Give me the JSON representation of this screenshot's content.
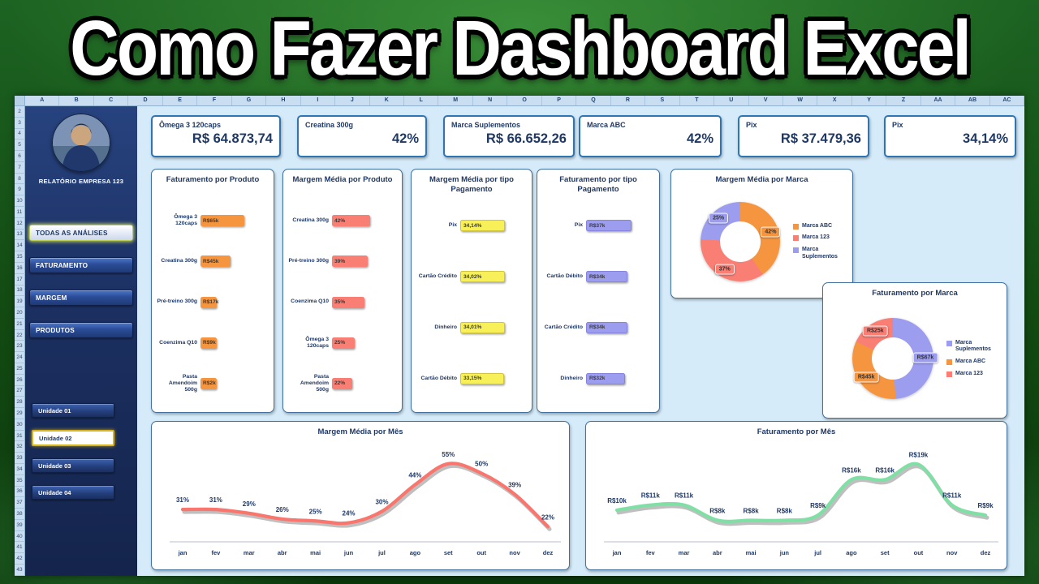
{
  "banner": {
    "title": "Como Fazer Dashboard Excel"
  },
  "spreadsheet": {
    "columns": [
      "A",
      "B",
      "C",
      "D",
      "E",
      "F",
      "G",
      "H",
      "I",
      "J",
      "K",
      "L",
      "M",
      "N",
      "O",
      "P",
      "Q",
      "R",
      "S",
      "T",
      "U",
      "V",
      "W",
      "X",
      "Y",
      "Z",
      "AA",
      "AB",
      "AC"
    ],
    "rows": [
      "2",
      "3",
      "4",
      "5",
      "6",
      "7",
      "8",
      "9",
      "10",
      "11",
      "12",
      "13",
      "14",
      "15",
      "16",
      "17",
      "18",
      "19",
      "20",
      "21",
      "22",
      "23",
      "24",
      "25",
      "26",
      "27",
      "28",
      "29",
      "30",
      "31",
      "32",
      "33",
      "34",
      "35",
      "36",
      "37",
      "38",
      "39",
      "40",
      "41",
      "42",
      "43"
    ]
  },
  "sidebar": {
    "company": "RELATÓRIO EMPRESA 123",
    "nav_items": [
      {
        "label": "TODAS AS ANÁLISES",
        "active": true
      },
      {
        "label": "FATURAMENTO",
        "active": false
      },
      {
        "label": "MARGEM",
        "active": false
      },
      {
        "label": "PRODUTOS",
        "active": false
      }
    ],
    "unit_items": [
      {
        "label": "Unidade 01",
        "active": false
      },
      {
        "label": "Unidade 02",
        "active": true
      },
      {
        "label": "Unidade 03",
        "active": false
      },
      {
        "label": "Unidade 04",
        "active": false
      }
    ]
  },
  "kpis": [
    {
      "label": "Ômega 3 120caps",
      "value": "R$ 64.873,74"
    },
    {
      "label": "Creatina 300g",
      "value": "42%"
    },
    {
      "label": "Marca Suplementos",
      "value": "R$ 66.652,26"
    },
    {
      "label": "Marca ABC",
      "value": "42%"
    },
    {
      "label": "Pix",
      "value": "R$ 37.479,36"
    },
    {
      "label": "Pix",
      "value": "34,14%"
    }
  ],
  "theme": {
    "navy": "#1F3864",
    "dashboard_bg": "#D5EBF9",
    "panel_border": "#41719C",
    "kpi_border": "#2E75B6",
    "sidebar_bg": "#1B2F60",
    "banner_green": "#1D6322",
    "orange": "#F5953F",
    "salmon": "#F97E74",
    "yellow": "#F7F058",
    "purple": "#9D9DF0",
    "green_line": "#7FDFA4"
  },
  "chart_data": [
    {
      "type": "bar",
      "title": "Faturamento por Produto",
      "categories": [
        "Ômega 3 120caps",
        "Creatina 300g",
        "Pré-treino 300g",
        "Coenzima Q10",
        "Pasta Amendoim 500g"
      ],
      "values": [
        65,
        45,
        17,
        9,
        2
      ],
      "value_labels": [
        "R$65k",
        "R$45k",
        "R$17k",
        "R$9k",
        "R$2k"
      ],
      "bar_color": "#F5953F",
      "axis_max": 100
    },
    {
      "type": "bar",
      "title": "Margem Média por Produto",
      "categories": [
        "Creatina 300g",
        "Pré-treino 300g",
        "Coenzima Q10",
        "Ômega 3 120caps",
        "Pasta Amendoim 500g"
      ],
      "values": [
        42,
        39,
        35,
        25,
        22
      ],
      "value_labels": [
        "42%",
        "39%",
        "35%",
        "25%",
        "22%"
      ],
      "bar_color": "#F97E74",
      "axis_max": 70
    },
    {
      "type": "bar",
      "title": "Margem Média por tipo Pagamento",
      "categories": [
        "Pix",
        "Cartão Crédito",
        "Dinheiro",
        "Cartão Débito"
      ],
      "values": [
        34.14,
        34.02,
        34.01,
        33.15
      ],
      "value_labels": [
        "34,14%",
        "34,02%",
        "34,01%",
        "33,15%"
      ],
      "bar_color": "#F7F058",
      "bar_border": "#cfc43a",
      "axis_max": 50
    },
    {
      "type": "bar",
      "title": "Faturamento por tipo Pagamento",
      "categories": [
        "Pix",
        "Cartão Débito",
        "Cartão Crédito",
        "Dinheiro"
      ],
      "values": [
        37,
        34,
        34,
        32
      ],
      "value_labels": [
        "R$37k",
        "R$34k",
        "R$34k",
        "R$32k"
      ],
      "bar_color": "#9D9DF0",
      "bar_border": "#8484dd",
      "axis_max": 55
    },
    {
      "type": "donut",
      "title": "Margem Média por Marca",
      "slices": [
        {
          "label": "Marca ABC",
          "value": 42,
          "display": "42%",
          "color": "#F5953F"
        },
        {
          "label": "Marca 123",
          "value": 37,
          "display": "37%",
          "color": "#F97E74"
        },
        {
          "label": "Marca Suplementos",
          "value": 25,
          "display": "25%",
          "color": "#9D9DF0"
        }
      ]
    },
    {
      "type": "donut",
      "title": "Faturamento por Marca",
      "slices": [
        {
          "label": "Marca Suplementos",
          "value": 67,
          "display": "R$67k",
          "color": "#9D9DF0"
        },
        {
          "label": "Marca ABC",
          "value": 45,
          "display": "R$45k",
          "color": "#F5953F"
        },
        {
          "label": "Marca 123",
          "value": 25,
          "display": "R$25k",
          "color": "#F97E74"
        }
      ]
    },
    {
      "type": "line",
      "title": "Margem Média por Mês",
      "x": [
        "jan",
        "fev",
        "mar",
        "abr",
        "mai",
        "jun",
        "jul",
        "ago",
        "set",
        "out",
        "nov",
        "dez"
      ],
      "values": [
        31,
        31,
        29,
        26,
        25,
        24,
        30,
        44,
        55,
        50,
        39,
        22
      ],
      "value_labels": [
        "31%",
        "31%",
        "29%",
        "26%",
        "25%",
        "24%",
        "30%",
        "44%",
        "55%",
        "50%",
        "39%",
        "22%"
      ],
      "line_color": "#F8766D",
      "ylim": [
        20,
        60
      ]
    },
    {
      "type": "line",
      "title": "Faturamento por Mês",
      "x": [
        "jan",
        "fev",
        "mar",
        "abr",
        "mai",
        "jun",
        "jul",
        "ago",
        "set",
        "out",
        "nov",
        "dez"
      ],
      "values": [
        10,
        11,
        11,
        8,
        8,
        8,
        9,
        16,
        16,
        19,
        11,
        9
      ],
      "value_labels": [
        "R$10k",
        "R$11k",
        "R$11k",
        "R$8k",
        "R$8k",
        "R$8k",
        "R$9k",
        "R$16k",
        "R$16k",
        "R$19k",
        "R$11k",
        "R$9k"
      ],
      "line_color": "#7FDFA4",
      "ylim": [
        6,
        21
      ]
    }
  ]
}
